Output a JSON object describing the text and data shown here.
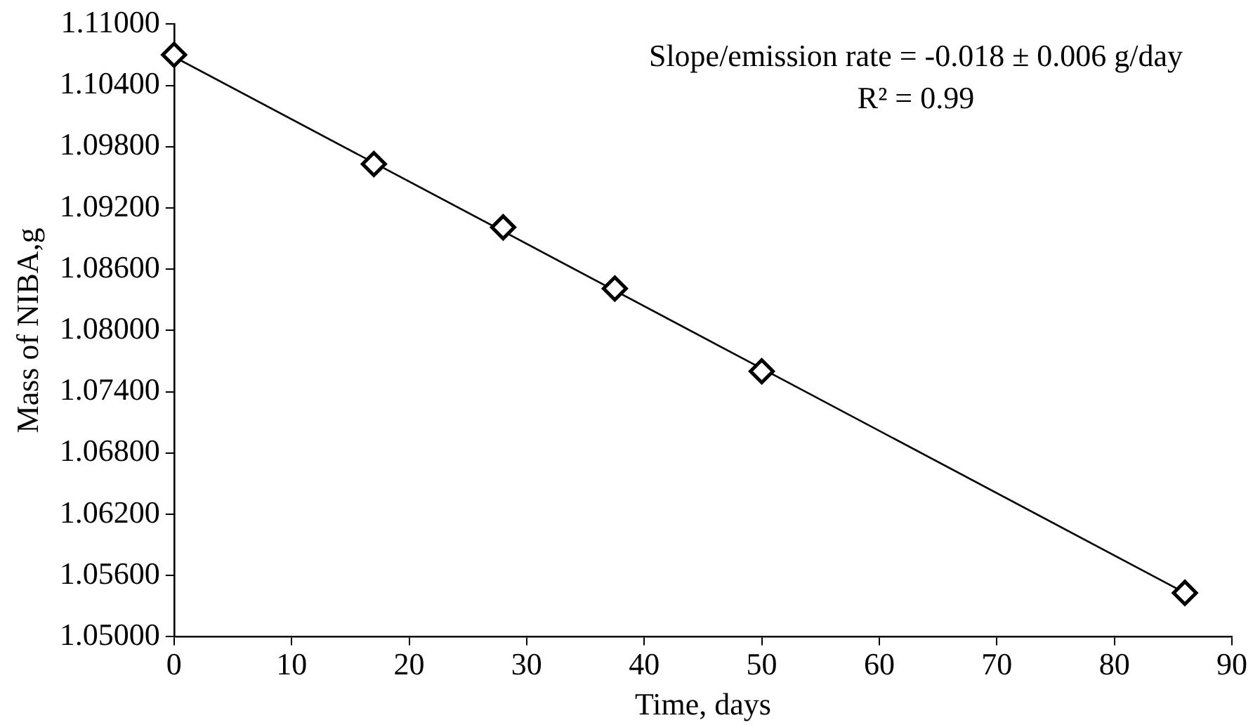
{
  "chart_data": {
    "type": "scatter",
    "xlabel": "Time, days",
    "ylabel": "Mass of NIBA,g",
    "xlim": [
      0,
      90
    ],
    "xticks": [
      0,
      10,
      20,
      30,
      40,
      50,
      60,
      70,
      80,
      90
    ],
    "ylim": [
      1.05,
      1.11
    ],
    "yticks": [
      {
        "value": 1.05,
        "label": "1.05000"
      },
      {
        "value": 1.056,
        "label": "1.05600"
      },
      {
        "value": 1.062,
        "label": "1.06200"
      },
      {
        "value": 1.068,
        "label": "1.06800"
      },
      {
        "value": 1.074,
        "label": "1.07400"
      },
      {
        "value": 1.08,
        "label": "1.08000"
      },
      {
        "value": 1.086,
        "label": "1.08600"
      },
      {
        "value": 1.092,
        "label": "1.09200"
      },
      {
        "value": 1.098,
        "label": "1.09800"
      },
      {
        "value": 1.104,
        "label": "1.10400"
      },
      {
        "value": 1.11,
        "label": "1.11000"
      }
    ],
    "series": [
      {
        "type": "line",
        "color": "#000000",
        "marker": "none",
        "x": [
          0,
          86
        ],
        "values": [
          1.1068,
          1.0543
        ]
      },
      {
        "color": "#000000",
        "marker": "diamond",
        "x": [
          0,
          17,
          28,
          37.5,
          50,
          86
        ],
        "values": [
          1.107,
          1.0963,
          1.0901,
          1.0841,
          1.076,
          1.0543
        ]
      }
    ],
    "annotations": [
      "Slope/emission rate = -0.018 ± 0.006 g/day",
      "R² = 0.99"
    ],
    "grid": false,
    "legend": false
  }
}
